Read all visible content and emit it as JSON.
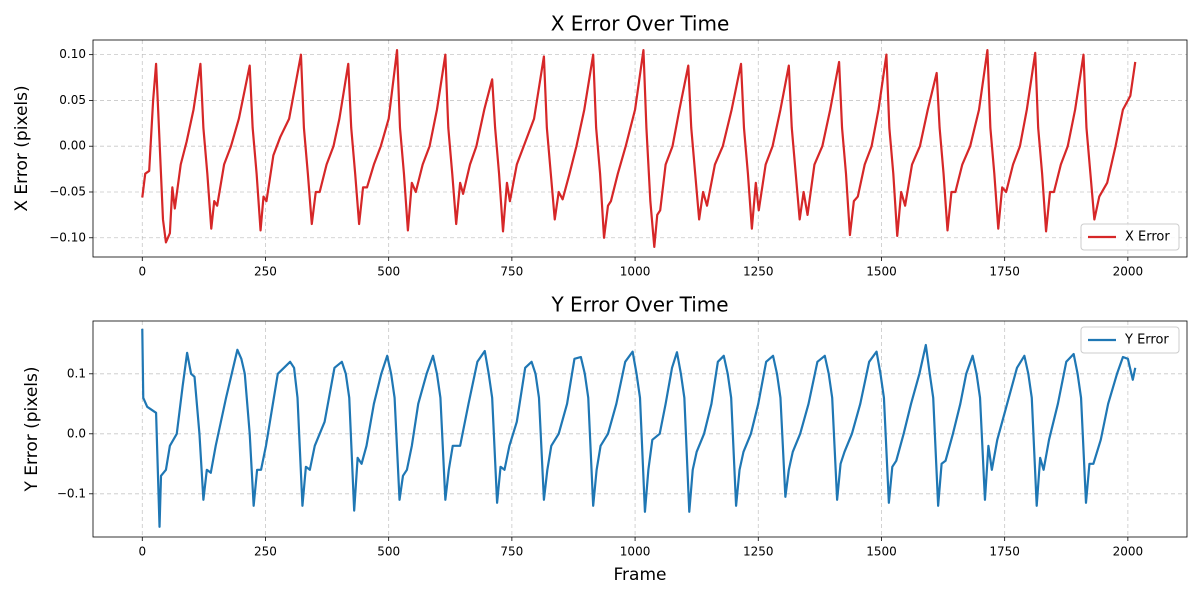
{
  "chart_data": [
    {
      "type": "line",
      "title": "X Error Over Time",
      "ylabel": "X Error (pixels)",
      "grid": true,
      "legend": "lower right",
      "xlim": [
        -100,
        2120
      ],
      "ylim": [
        -0.121,
        0.116
      ],
      "xticks": [
        0,
        250,
        500,
        750,
        1000,
        1250,
        1500,
        1750,
        2000
      ],
      "yticks": [
        {
          "value": -0.1,
          "label": "−0.10"
        },
        {
          "value": -0.05,
          "label": "−0.05"
        },
        {
          "value": 0,
          "label": "0.00"
        },
        0.05,
        {
          "value": 0.1,
          "label": "0.10"
        }
      ],
      "x": [
        0,
        6,
        14,
        22,
        28,
        33,
        42,
        48,
        56,
        61,
        66,
        78,
        90,
        104,
        118,
        124,
        132,
        140,
        146,
        152,
        166,
        180,
        196,
        218,
        224,
        232,
        240,
        246,
        252,
        266,
        280,
        298,
        322,
        328,
        336,
        344,
        352,
        360,
        374,
        388,
        400,
        418,
        424,
        432,
        440,
        448,
        456,
        470,
        484,
        500,
        517,
        523,
        531,
        539,
        547,
        555,
        569,
        583,
        598,
        615,
        621,
        629,
        637,
        645,
        651,
        665,
        678,
        694,
        710,
        716,
        724,
        732,
        740,
        746,
        760,
        774,
        795,
        815,
        821,
        829,
        837,
        845,
        853,
        867,
        881,
        897,
        915,
        921,
        929,
        937,
        945,
        951,
        965,
        981,
        1000,
        1017,
        1023,
        1031,
        1039,
        1045,
        1051,
        1062,
        1076,
        1090,
        1108,
        1114,
        1122,
        1130,
        1138,
        1146,
        1162,
        1178,
        1196,
        1215,
        1221,
        1229,
        1237,
        1245,
        1251,
        1265,
        1279,
        1295,
        1312,
        1318,
        1326,
        1334,
        1342,
        1350,
        1364,
        1380,
        1396,
        1414,
        1420,
        1428,
        1436,
        1444,
        1452,
        1466,
        1480,
        1494,
        1510,
        1516,
        1524,
        1532,
        1540,
        1548,
        1562,
        1578,
        1594,
        1612,
        1618,
        1626,
        1634,
        1642,
        1650,
        1664,
        1680,
        1698,
        1715,
        1721,
        1729,
        1737,
        1745,
        1753,
        1767,
        1781,
        1795,
        1812,
        1818,
        1826,
        1834,
        1842,
        1850,
        1864,
        1878,
        1893,
        1910,
        1916,
        1924,
        1932,
        1942,
        1958,
        1975,
        1990,
        2005,
        2015
      ],
      "series": [
        {
          "name": "X Error",
          "color": "#d62728",
          "values": [
            -0.056,
            -0.03,
            -0.027,
            0.05,
            0.09,
            0.03,
            -0.08,
            -0.105,
            -0.095,
            -0.045,
            -0.068,
            -0.02,
            0.005,
            0.04,
            0.09,
            0.02,
            -0.03,
            -0.09,
            -0.06,
            -0.065,
            -0.02,
            0.0,
            0.03,
            0.088,
            0.02,
            -0.03,
            -0.092,
            -0.055,
            -0.06,
            -0.01,
            0.01,
            0.03,
            0.1,
            0.02,
            -0.03,
            -0.085,
            -0.05,
            -0.05,
            -0.02,
            0.0,
            0.03,
            0.09,
            0.02,
            -0.03,
            -0.085,
            -0.045,
            -0.045,
            -0.02,
            0.0,
            0.03,
            0.105,
            0.02,
            -0.03,
            -0.092,
            -0.04,
            -0.05,
            -0.02,
            0.0,
            0.04,
            0.1,
            0.02,
            -0.03,
            -0.085,
            -0.04,
            -0.052,
            -0.02,
            0.0,
            0.04,
            0.073,
            0.02,
            -0.03,
            -0.093,
            -0.04,
            -0.06,
            -0.02,
            0.0,
            0.03,
            0.098,
            0.02,
            -0.03,
            -0.08,
            -0.05,
            -0.058,
            -0.03,
            0.0,
            0.04,
            0.1,
            0.02,
            -0.03,
            -0.1,
            -0.065,
            -0.06,
            -0.03,
            0.0,
            0.04,
            0.105,
            0.02,
            -0.06,
            -0.11,
            -0.075,
            -0.07,
            -0.02,
            0.0,
            0.04,
            0.088,
            0.02,
            -0.03,
            -0.08,
            -0.05,
            -0.065,
            -0.02,
            0.0,
            0.04,
            0.09,
            0.02,
            -0.03,
            -0.09,
            -0.04,
            -0.07,
            -0.02,
            0.0,
            0.04,
            0.088,
            0.02,
            -0.03,
            -0.08,
            -0.05,
            -0.075,
            -0.02,
            0.0,
            0.04,
            0.092,
            0.02,
            -0.03,
            -0.097,
            -0.06,
            -0.055,
            -0.02,
            0.0,
            0.04,
            0.1,
            0.02,
            -0.03,
            -0.098,
            -0.05,
            -0.065,
            -0.02,
            0.0,
            0.04,
            0.08,
            0.02,
            -0.03,
            -0.092,
            -0.05,
            -0.05,
            -0.02,
            0.0,
            0.04,
            0.105,
            0.02,
            -0.03,
            -0.09,
            -0.045,
            -0.05,
            -0.02,
            0.0,
            0.04,
            0.102,
            0.02,
            -0.03,
            -0.093,
            -0.05,
            -0.05,
            -0.02,
            0.0,
            0.04,
            0.1,
            0.02,
            -0.03,
            -0.08,
            -0.055,
            -0.04,
            0.0,
            0.04,
            0.055,
            0.092
          ]
        }
      ]
    },
    {
      "type": "line",
      "title": "Y Error Over Time",
      "xlabel": "Frame",
      "ylabel": "Y Error (pixels)",
      "grid": true,
      "legend": "upper right",
      "xlim": [
        -100,
        2120
      ],
      "ylim": [
        -0.172,
        0.188
      ],
      "xticks": [
        0,
        250,
        500,
        750,
        1000,
        1250,
        1500,
        1750,
        2000
      ],
      "yticks": [
        {
          "value": -0.1,
          "label": "−0.1"
        },
        {
          "value": 0,
          "label": "0.0"
        },
        0.1
      ],
      "x": [
        0,
        2,
        10,
        28,
        35,
        38,
        48,
        56,
        70,
        82,
        91,
        99,
        106,
        116,
        124,
        131,
        139,
        149,
        170,
        193,
        201,
        208,
        218,
        226,
        233,
        241,
        251,
        275,
        300,
        308,
        315,
        325,
        332,
        340,
        350,
        370,
        390,
        405,
        413,
        420,
        430,
        437,
        445,
        455,
        470,
        485,
        497,
        505,
        512,
        522,
        529,
        537,
        547,
        560,
        577,
        590,
        598,
        605,
        615,
        622,
        630,
        645,
        662,
        680,
        695,
        703,
        710,
        720,
        727,
        735,
        745,
        760,
        777,
        790,
        798,
        805,
        815,
        822,
        830,
        845,
        862,
        877,
        890,
        898,
        905,
        915,
        922,
        930,
        945,
        962,
        980,
        995,
        1003,
        1010,
        1020,
        1027,
        1035,
        1050,
        1062,
        1075,
        1085,
        1093,
        1100,
        1110,
        1117,
        1125,
        1140,
        1155,
        1168,
        1180,
        1188,
        1195,
        1205,
        1212,
        1220,
        1235,
        1250,
        1266,
        1280,
        1288,
        1295,
        1305,
        1312,
        1320,
        1335,
        1352,
        1370,
        1385,
        1393,
        1400,
        1410,
        1417,
        1425,
        1440,
        1457,
        1475,
        1490,
        1498,
        1505,
        1515,
        1522,
        1530,
        1545,
        1560,
        1577,
        1590,
        1598,
        1605,
        1615,
        1622,
        1630,
        1645,
        1660,
        1672,
        1685,
        1693,
        1700,
        1710,
        1717,
        1724,
        1735,
        1755,
        1775,
        1790,
        1798,
        1805,
        1815,
        1822,
        1829,
        1840,
        1858,
        1875,
        1890,
        1898,
        1905,
        1915,
        1922,
        1930,
        1945,
        1960,
        1978,
        1990,
        2000,
        2010,
        2015
      ],
      "series": [
        {
          "name": "Y Error",
          "color": "#1f77b4",
          "values": [
            0.175,
            0.06,
            0.045,
            0.035,
            -0.155,
            -0.07,
            -0.06,
            -0.02,
            0.0,
            0.08,
            0.135,
            0.1,
            0.095,
            0.0,
            -0.11,
            -0.06,
            -0.065,
            -0.02,
            0.06,
            0.14,
            0.125,
            0.1,
            0.0,
            -0.12,
            -0.06,
            -0.06,
            -0.02,
            0.1,
            0.12,
            0.11,
            0.06,
            -0.12,
            -0.055,
            -0.06,
            -0.02,
            0.02,
            0.11,
            0.12,
            0.1,
            0.06,
            -0.128,
            -0.04,
            -0.05,
            -0.02,
            0.05,
            0.1,
            0.13,
            0.1,
            0.06,
            -0.11,
            -0.07,
            -0.06,
            -0.02,
            0.05,
            0.1,
            0.13,
            0.1,
            0.06,
            -0.11,
            -0.06,
            -0.02,
            -0.02,
            0.05,
            0.12,
            0.138,
            0.1,
            0.06,
            -0.115,
            -0.055,
            -0.06,
            -0.02,
            0.02,
            0.11,
            0.12,
            0.1,
            0.06,
            -0.11,
            -0.06,
            -0.02,
            0.0,
            0.05,
            0.125,
            0.128,
            0.1,
            0.06,
            -0.12,
            -0.06,
            -0.02,
            0.0,
            0.05,
            0.12,
            0.137,
            0.1,
            0.06,
            -0.13,
            -0.06,
            -0.01,
            0.0,
            0.05,
            0.11,
            0.136,
            0.1,
            0.06,
            -0.13,
            -0.06,
            -0.03,
            0.0,
            0.05,
            0.12,
            0.13,
            0.1,
            0.06,
            -0.12,
            -0.06,
            -0.03,
            0.0,
            0.05,
            0.12,
            0.13,
            0.1,
            0.06,
            -0.105,
            -0.06,
            -0.03,
            0.0,
            0.05,
            0.12,
            0.13,
            0.1,
            0.06,
            -0.11,
            -0.05,
            -0.03,
            0.0,
            0.05,
            0.12,
            0.137,
            0.1,
            0.06,
            -0.115,
            -0.055,
            -0.045,
            0.0,
            0.05,
            0.1,
            0.148,
            0.1,
            0.06,
            -0.12,
            -0.05,
            -0.045,
            0.0,
            0.05,
            0.1,
            0.13,
            0.1,
            0.06,
            -0.11,
            -0.02,
            -0.06,
            -0.01,
            0.05,
            0.11,
            0.13,
            0.1,
            0.06,
            -0.12,
            -0.04,
            -0.06,
            -0.01,
            0.05,
            0.12,
            0.133,
            0.1,
            0.06,
            -0.115,
            -0.05,
            -0.05,
            -0.01,
            0.05,
            0.1,
            0.128,
            0.125,
            0.09,
            0.11
          ]
        }
      ]
    }
  ]
}
